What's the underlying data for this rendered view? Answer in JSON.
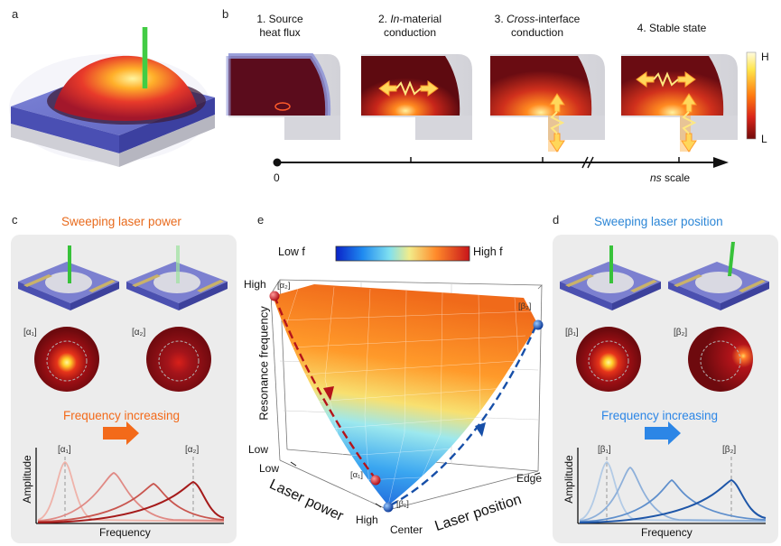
{
  "panels": {
    "a": "a",
    "b": "b",
    "c": "c",
    "d": "d",
    "e": "e"
  },
  "panel_b": {
    "stages": [
      {
        "line1": "1. Source",
        "line2": "heat flux"
      },
      {
        "num": "2. ",
        "italic": "In",
        "rest": "-material",
        "line2": "conduction"
      },
      {
        "num": "3. ",
        "italic": "Cross",
        "rest": "-interface",
        "line2": "conduction"
      },
      {
        "line1": "4. Stable state",
        "line2": ""
      }
    ],
    "colorbar_high": "H",
    "colorbar_low": "L",
    "timeline_start": "0",
    "timeline_end_italic": "ns",
    "timeline_end_rest": " scale",
    "colors": {
      "hot": "#ffe68a",
      "mid": "#e6401a",
      "cold": "#6e0a0a"
    }
  },
  "panel_c": {
    "title": "Sweeping laser power",
    "alpha1": "[α₁]",
    "alpha2": "[α₂]",
    "freq_label": "Frequency increasing",
    "xlabel": "Frequency",
    "ylabel": "Amplitude",
    "arrow_color": "#f36a1a"
  },
  "panel_d": {
    "title": "Sweeping laser position",
    "beta1": "[β₁]",
    "beta2": "[β₂]",
    "freq_label": "Frequency increasing",
    "xlabel": "Frequency",
    "ylabel": "Amplitude",
    "arrow_color": "#2c86e6"
  },
  "panel_e": {
    "colorbar_low": "Low f",
    "colorbar_high": "High f",
    "z_label": "Resonance frequency",
    "z_high": "High",
    "z_low": "Low",
    "power_label": "Laser power",
    "power_low": "Low",
    "power_high": "High",
    "position_label": "Laser position",
    "pos_center": "Center",
    "pos_edge": "Edge",
    "alpha1": "[α₁]",
    "alpha2": "[α₂]",
    "beta1": "[β₁]",
    "beta2": "[β₂]"
  }
}
